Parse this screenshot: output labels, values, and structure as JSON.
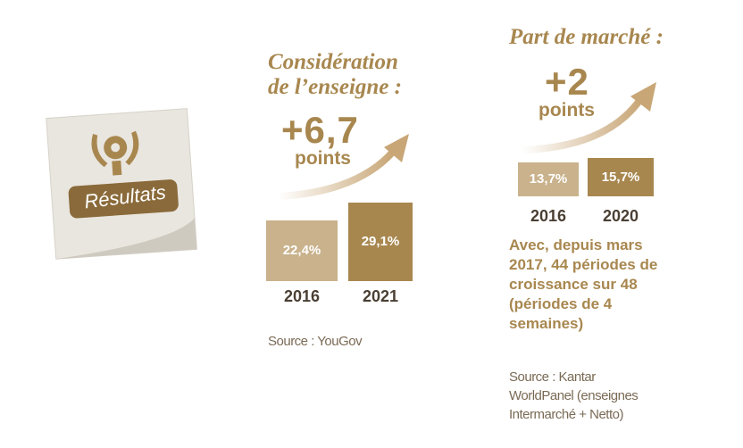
{
  "badge": "Résultats",
  "chart_data": [
    {
      "type": "bar",
      "title": "Considération de l’enseigne :",
      "annotation": "+6,7",
      "annotation_unit": "points",
      "categories": [
        "2016",
        "2021"
      ],
      "values": [
        22.4,
        29.1
      ],
      "value_labels": [
        "22,4%",
        "29,1%"
      ],
      "colors": [
        "#c9b28c",
        "#a8874f"
      ],
      "source": "Source : YouGov"
    },
    {
      "type": "bar",
      "title": "Part de marché :",
      "annotation": "+2",
      "annotation_unit": "points",
      "categories": [
        "2016",
        "2020"
      ],
      "values": [
        13.7,
        15.7
      ],
      "value_labels": [
        "13,7%",
        "15,7%"
      ],
      "colors": [
        "#c9b28c",
        "#a8874f"
      ],
      "note": "Avec, depuis mars 2017, 44 périodes de croissance sur 48 (périodes de 4 semaines)",
      "source": "Source : Kantar WorldPanel (enseignes Intermarché + Netto)"
    }
  ]
}
